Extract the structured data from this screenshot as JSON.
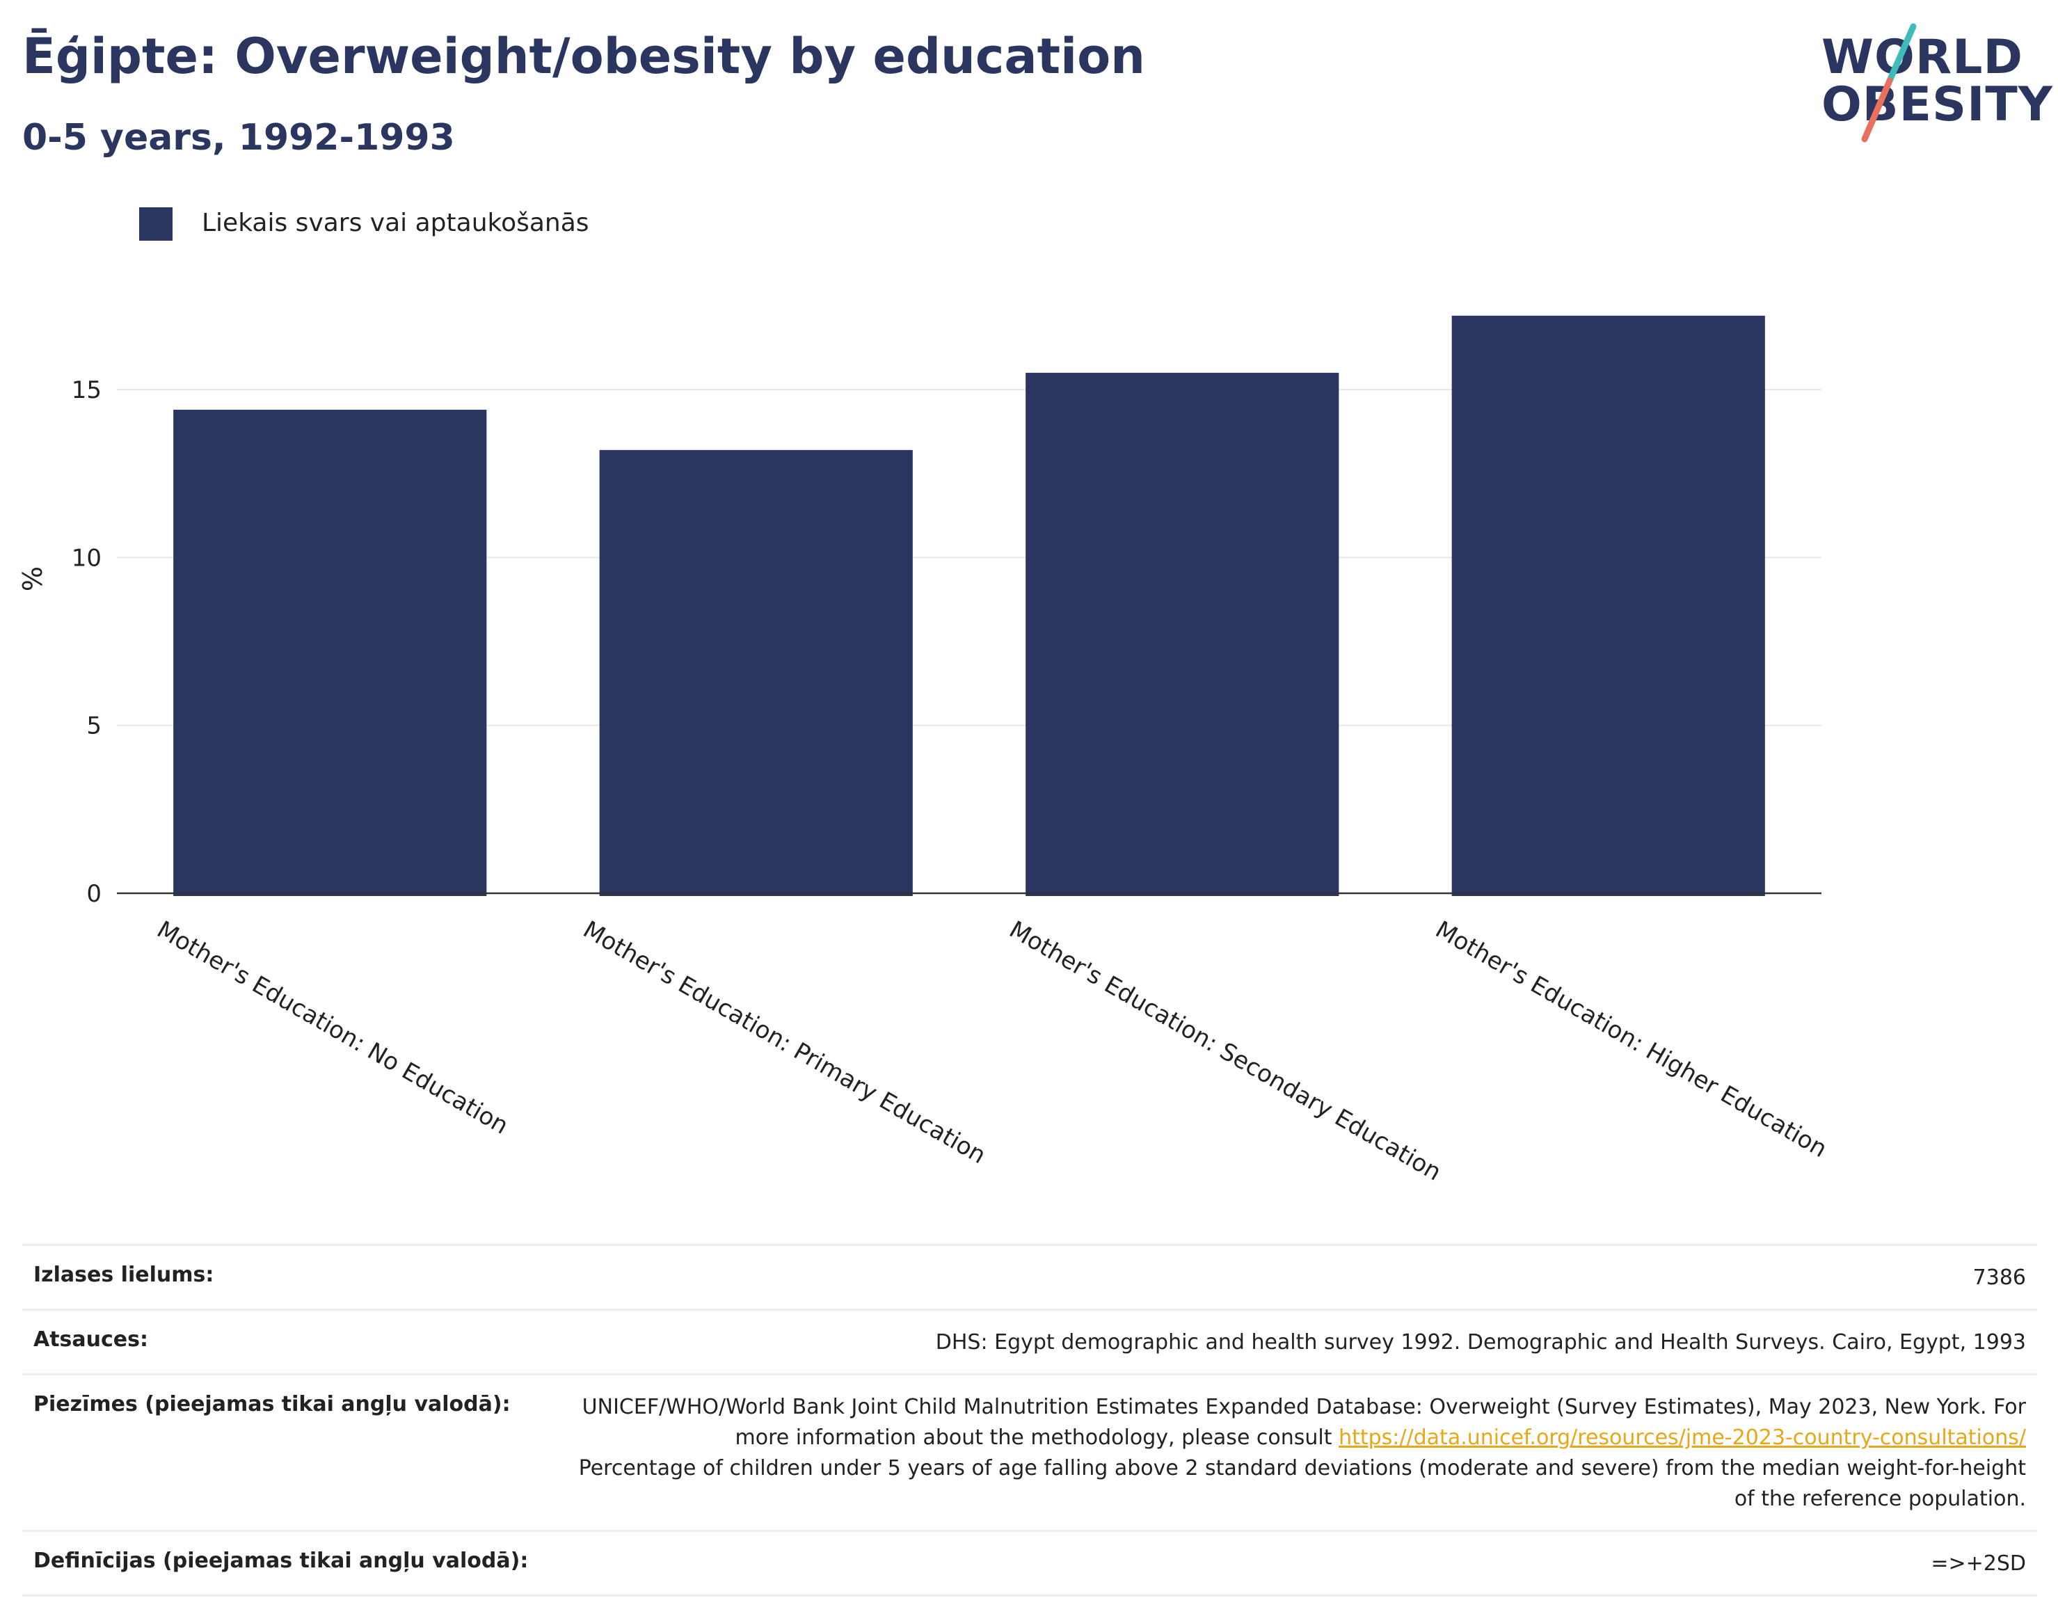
{
  "header": {
    "title": "Ēģipte: Overweight/obesity by education",
    "subtitle": "0-5 years, 1992-1993"
  },
  "logo": {
    "line1": "WORLD",
    "line2": "OBESITY"
  },
  "legend": {
    "label": "Liekais svars vai aptaukošanās",
    "color": "#2b3660"
  },
  "chart_data": {
    "type": "bar",
    "categories": [
      "Mother's Education: No Education",
      "Mother's Education: Primary Education",
      "Mother's Education: Secondary Education",
      "Mother's Education: Higher Education"
    ],
    "series": [
      {
        "name": "Liekais svars vai aptaukošanās",
        "values": [
          14.4,
          13.2,
          15.5,
          17.2
        ],
        "color": "#2b3660"
      }
    ],
    "ylabel": "%",
    "ylim": [
      0,
      17.9
    ],
    "yticks": [
      0,
      5,
      10,
      15
    ],
    "grid": true,
    "legend_position": "top-left"
  },
  "info": {
    "sample_label": "Izlases lielums:",
    "sample_value": "7386",
    "sources_label": "Atsauces:",
    "sources_value": "DHS: Egypt demographic and health survey 1992. Demographic and Health Surveys. Cairo, Egypt, 1993",
    "notes_label": "Piezīmes (pieejamas tikai angļu valodā):",
    "notes_text1": "UNICEF/WHO/World Bank Joint Child Malnutrition Estimates Expanded Database: Overweight (Survey Estimates), May 2023, New York. For more information about the methodology, please consult",
    "notes_link": "https://data.unicef.org/resources/jme-2023-country-consultations/",
    "notes_text2": "Percentage of children under 5 years of age falling above 2 standard deviations (moderate and severe) from the median weight-for-height of the reference population.",
    "definitions_label": "Definīcijas (pieejamas tikai angļu valodā):",
    "definitions_value": "=>+2SD"
  }
}
